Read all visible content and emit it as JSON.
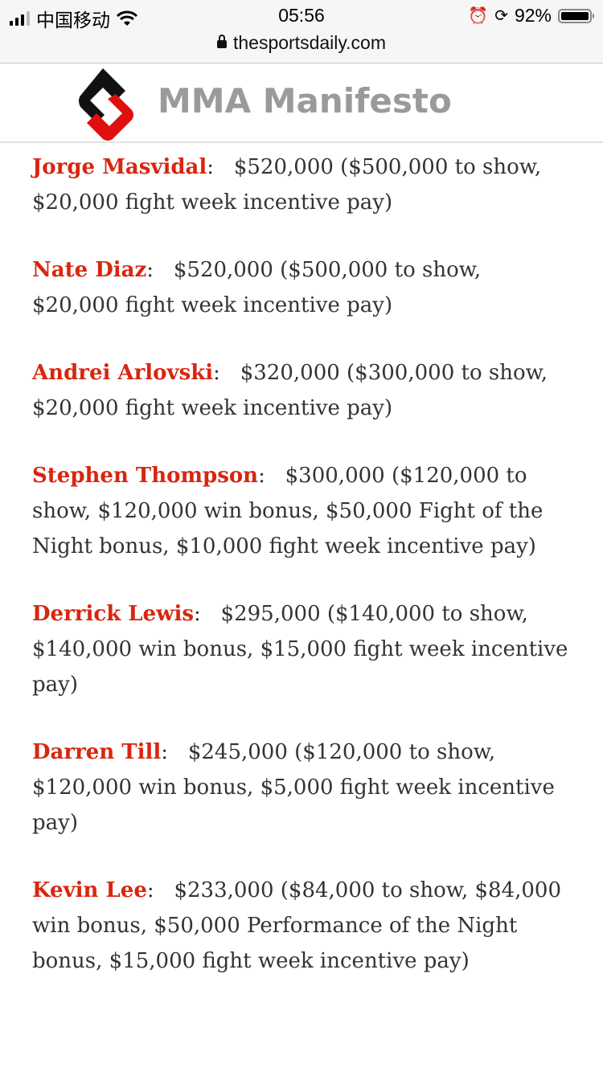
{
  "status_bar": {
    "carrier": "中国移动",
    "time": "05:56",
    "battery": "92%",
    "battery_level": 0.92
  },
  "browser": {
    "url": "thesportsdaily.com"
  },
  "header": {
    "site_name": "MMA Manifesto"
  },
  "colors": {
    "name": "#d9260f",
    "text": "#333333",
    "logo_black": "#111111",
    "logo_red": "#e01010"
  },
  "entries": [
    {
      "name": "Jorge Masvidal",
      "pay": "$520,000 ($500,000 to show, $20,000 fight week incentive pay)"
    },
    {
      "name": "Nate Diaz",
      "pay": "$520,000 ($500,000 to show, $20,000 fight week incentive pay)"
    },
    {
      "name": "Andrei Arlovski",
      "pay": "$320,000 ($300,000 to show, $20,000 fight week incentive pay)"
    },
    {
      "name": "Stephen Thompson",
      "pay": "$300,000 ($120,000 to show, $120,000 win bonus, $50,000 Fight of the Night bonus, $10,000 fight week incentive pay)"
    },
    {
      "name": "Derrick Lewis",
      "pay": "$295,000 ($140,000 to show, $140,000 win bonus, $15,000 fight week incentive pay)"
    },
    {
      "name": "Darren Till",
      "pay": "$245,000 ($120,000 to show, $120,000 win bonus, $5,000 fight week incentive pay)"
    },
    {
      "name": "Kevin Lee",
      "pay": "$233,000 ($84,000 to show, $84,000 win bonus, $50,000 Performance of the Night bonus, $15,000 fight week incentive pay)"
    }
  ]
}
